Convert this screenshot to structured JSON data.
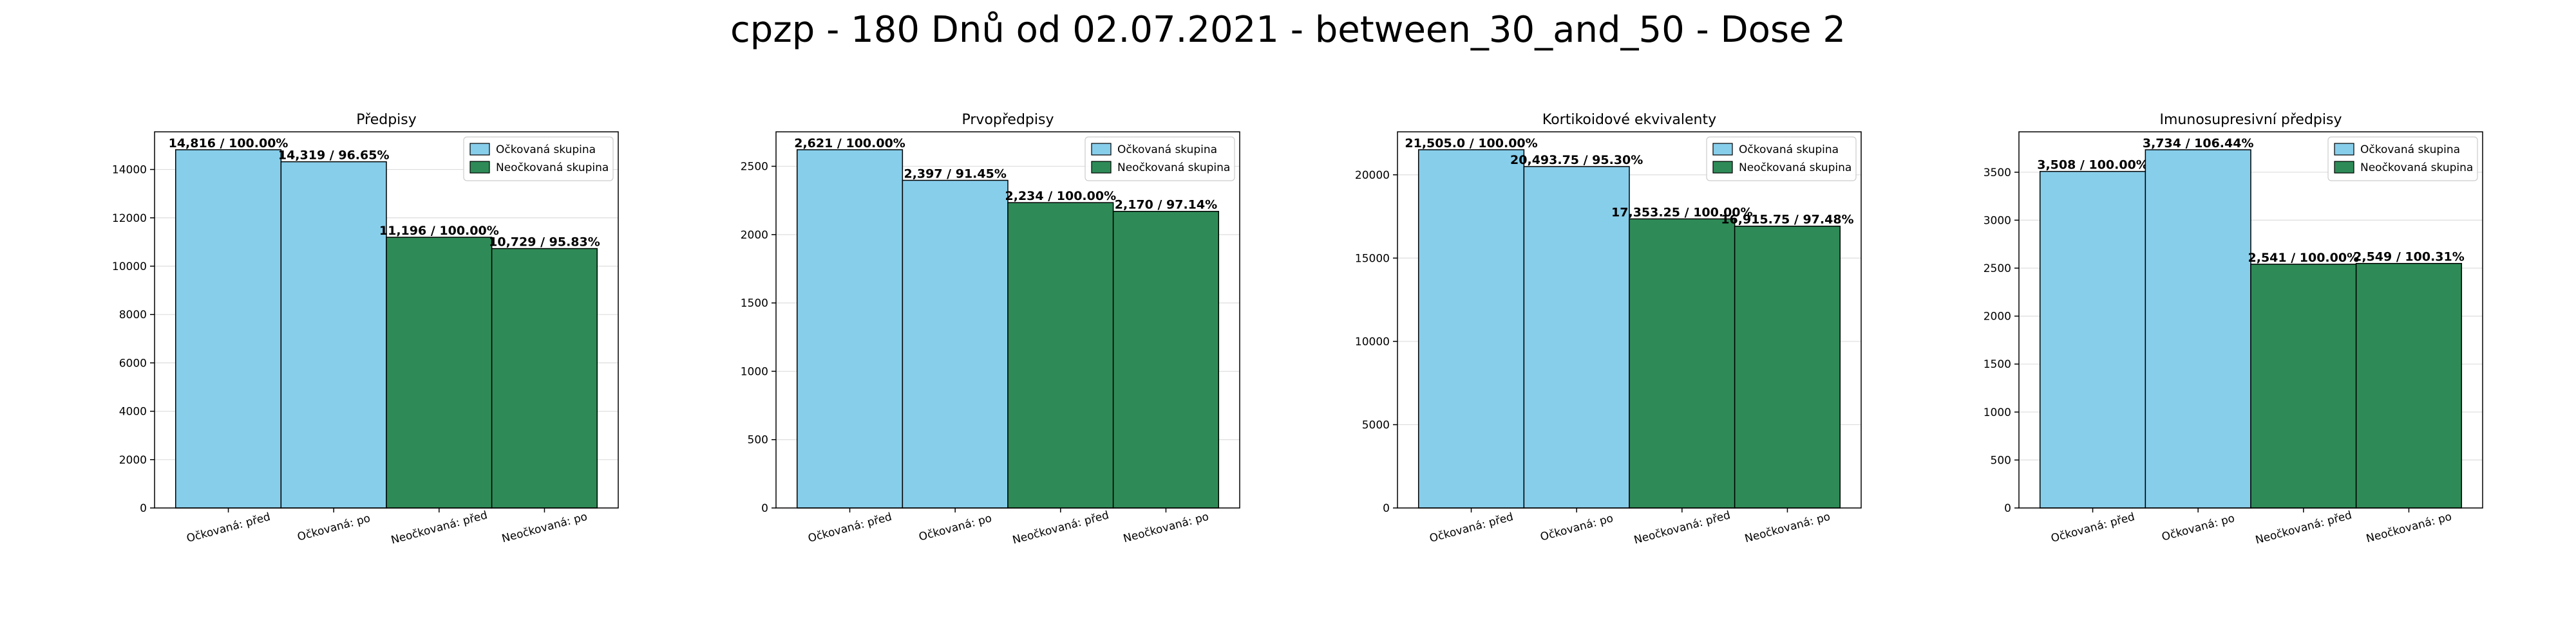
{
  "suptitle": "cpzp - 180 Dnů od 02.07.2021 - between_30_and_50 - Dose 2",
  "colors": {
    "vaccinated": "#87CEEB",
    "unvaccinated": "#2E8B57",
    "edge": "#000000",
    "grid": "#dddddd"
  },
  "chart_data": [
    {
      "type": "bar",
      "title": "Předpisy",
      "categories": [
        "Očkovaná: před",
        "Očkovaná: po",
        "Neočkovaná: před",
        "Neočkovaná: po"
      ],
      "values": [
        14816,
        14319,
        11196,
        10729
      ],
      "labels": [
        "14,816 / 100.00%",
        "14,319 / 96.65%",
        "11,196 / 100.00%",
        "10,729 / 95.83%"
      ],
      "groups": [
        "vaccinated",
        "vaccinated",
        "unvaccinated",
        "unvaccinated"
      ],
      "ylim": [
        0,
        15557
      ],
      "yticks": [
        0,
        2000,
        4000,
        6000,
        8000,
        10000,
        12000,
        14000
      ],
      "legend": [
        "Očkovaná skupina",
        "Neočkovaná skupina"
      ],
      "legend_position": "top-right",
      "grid": true
    },
    {
      "type": "bar",
      "title": "Prvopředpisy",
      "categories": [
        "Očkovaná: před",
        "Očkovaná: po",
        "Neočkovaná: před",
        "Neočkovaná: po"
      ],
      "values": [
        2621,
        2397,
        2234,
        2170
      ],
      "labels": [
        "2,621 / 100.00%",
        "2,397 / 91.45%",
        "2,234 / 100.00%",
        "2,170 / 97.14%"
      ],
      "groups": [
        "vaccinated",
        "vaccinated",
        "unvaccinated",
        "unvaccinated"
      ],
      "ylim": [
        0,
        2752
      ],
      "yticks": [
        0,
        500,
        1000,
        1500,
        2000,
        2500
      ],
      "legend": [
        "Očkovaná skupina",
        "Neočkovaná skupina"
      ],
      "legend_position": "top-right",
      "grid": true
    },
    {
      "type": "bar",
      "title": "Kortikoidové ekvivalenty",
      "categories": [
        "Očkovaná: před",
        "Očkovaná: po",
        "Neočkovaná: před",
        "Neočkovaná: po"
      ],
      "values": [
        21505.0,
        20493.75,
        17353.25,
        16915.75
      ],
      "labels": [
        "21,505.0 / 100.00%",
        "20,493.75 / 95.30%",
        "17,353.25 / 100.00%",
        "16,915.75 / 97.48%"
      ],
      "groups": [
        "vaccinated",
        "vaccinated",
        "unvaccinated",
        "unvaccinated"
      ],
      "ylim": [
        0,
        22580
      ],
      "yticks": [
        0,
        5000,
        10000,
        15000,
        20000
      ],
      "legend": [
        "Očkovaná skupina",
        "Neočkovaná skupina"
      ],
      "legend_position": "top-right",
      "grid": true
    },
    {
      "type": "bar",
      "title": "Imunosupresivní předpisy",
      "categories": [
        "Očkovaná: před",
        "Očkovaná: po",
        "Neočkovaná: před",
        "Neočkovaná: po"
      ],
      "values": [
        3508,
        3734,
        2541,
        2549
      ],
      "labels": [
        "3,508 / 100.00%",
        "3,734 / 106.44%",
        "2,541 / 100.00%",
        "2,549 / 100.31%"
      ],
      "groups": [
        "vaccinated",
        "vaccinated",
        "unvaccinated",
        "unvaccinated"
      ],
      "ylim": [
        0,
        3921
      ],
      "yticks": [
        0,
        500,
        1000,
        1500,
        2000,
        2500,
        3000,
        3500
      ],
      "legend": [
        "Očkovaná skupina",
        "Neočkovaná skupina"
      ],
      "legend_position": "top-right",
      "grid": true
    }
  ]
}
